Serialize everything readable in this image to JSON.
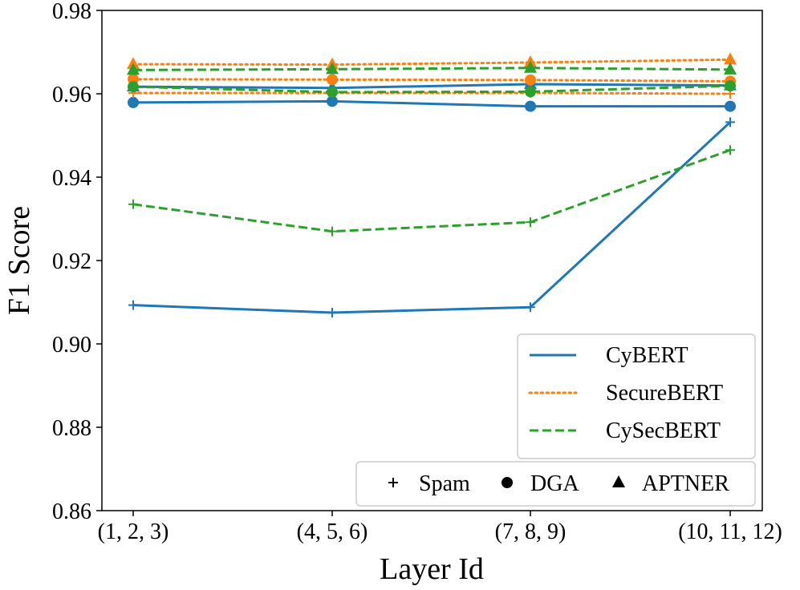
{
  "chart_data": {
    "type": "line",
    "xlabel": "Layer Id",
    "ylabel": "F1 Score",
    "categories": [
      "(1, 2, 3)",
      "(4, 5, 6)",
      "(7, 8, 9)",
      "(10, 11, 12)"
    ],
    "ylim": [
      0.86,
      0.98
    ],
    "yticks": [
      "0.86",
      "0.88",
      "0.90",
      "0.92",
      "0.94",
      "0.96",
      "0.98"
    ],
    "grid": false,
    "models": [
      {
        "name": "CyBERT",
        "color": "#1f77b4",
        "style": "solid"
      },
      {
        "name": "SecureBERT",
        "color": "#ff7f0e",
        "style": "dotted"
      },
      {
        "name": "CySecBERT",
        "color": "#2ca02c",
        "style": "dashed"
      }
    ],
    "tasks": [
      {
        "name": "Spam",
        "marker": "plus"
      },
      {
        "name": "DGA",
        "marker": "circle"
      },
      {
        "name": "APTNER",
        "marker": "triangle"
      }
    ],
    "series": [
      {
        "model": "CyBERT",
        "task": "Spam",
        "values": [
          0.9093,
          0.9075,
          0.9088,
          0.9532
        ]
      },
      {
        "model": "CyBERT",
        "task": "DGA",
        "values": [
          0.9579,
          0.9582,
          0.957,
          0.957
        ]
      },
      {
        "model": "CyBERT",
        "task": "APTNER",
        "values": [
          0.9617,
          0.9614,
          0.9623,
          0.962
        ]
      },
      {
        "model": "SecureBERT",
        "task": "Spam",
        "values": [
          0.9602,
          0.9602,
          0.9602,
          0.96
        ]
      },
      {
        "model": "SecureBERT",
        "task": "DGA",
        "values": [
          0.9635,
          0.9634,
          0.9633,
          0.963
        ]
      },
      {
        "model": "SecureBERT",
        "task": "APTNER",
        "values": [
          0.9671,
          0.967,
          0.9675,
          0.9682
        ]
      },
      {
        "model": "CySecBERT",
        "task": "Spam",
        "values": [
          0.9335,
          0.927,
          0.9292,
          0.9465
        ]
      },
      {
        "model": "CySecBERT",
        "task": "DGA",
        "values": [
          0.9617,
          0.9604,
          0.9605,
          0.9619
        ]
      },
      {
        "model": "CySecBERT",
        "task": "APTNER",
        "values": [
          0.9657,
          0.9659,
          0.9662,
          0.9658
        ]
      }
    ],
    "legend_placement": "lower-right"
  }
}
